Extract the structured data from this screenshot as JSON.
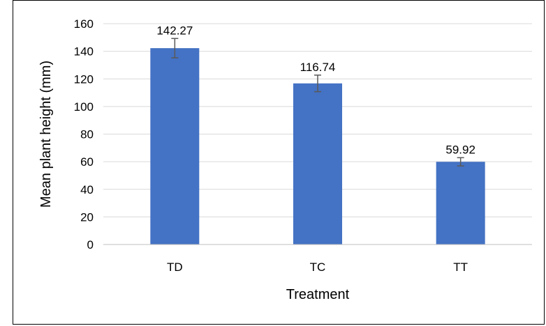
{
  "chart_data": {
    "type": "bar",
    "title": "",
    "xlabel": "Treatment",
    "ylabel": "Mean plant height (mm)",
    "categories": [
      "TD",
      "TC",
      "TT"
    ],
    "values": [
      142.27,
      116.74,
      59.92
    ],
    "data_labels": [
      "142.27",
      "116.74",
      "59.92"
    ],
    "error": [
      7,
      6,
      3
    ],
    "ylim": [
      0,
      160
    ],
    "yticks": [
      0,
      20,
      40,
      60,
      80,
      100,
      120,
      140,
      160
    ],
    "grid": true,
    "bar_color": "#4472C4",
    "gridline_color": "#D9D9D9",
    "errorbar_color": "#595959"
  }
}
